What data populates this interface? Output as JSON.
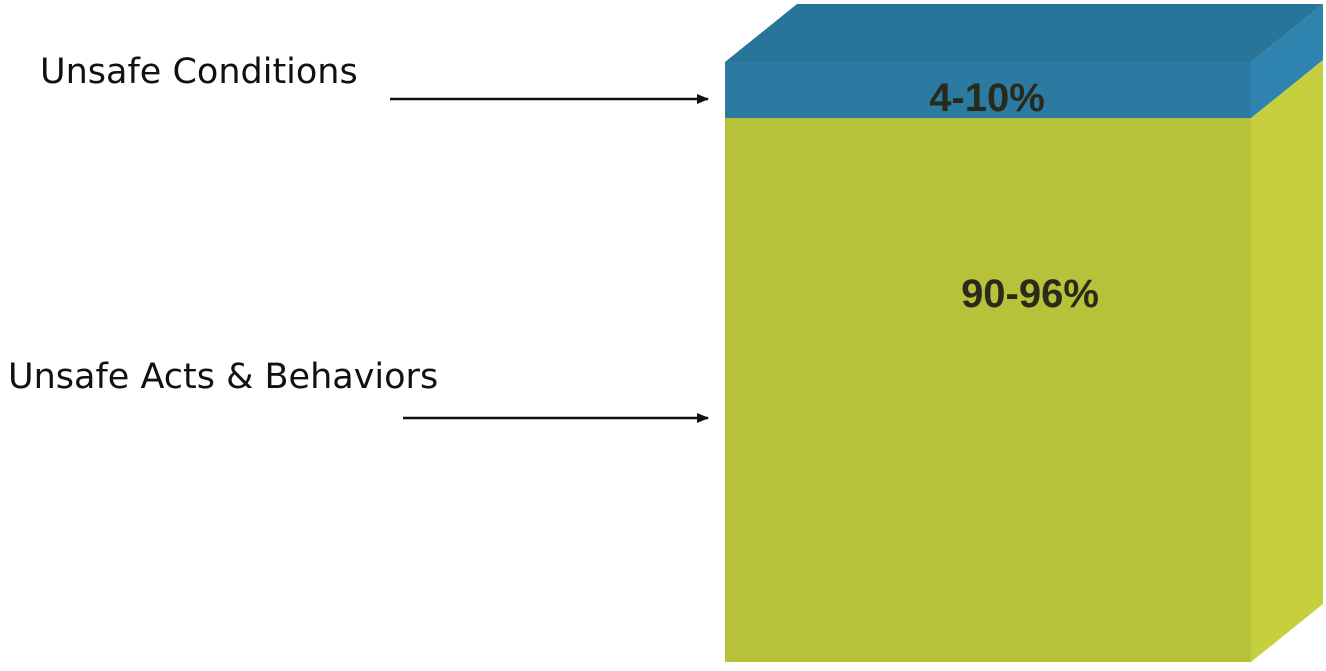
{
  "chart_data": {
    "type": "bar",
    "orientation": "vertical",
    "style": "3d-stacked-box",
    "categories": [
      ""
    ],
    "series": [
      {
        "name": "Unsafe Acts & Behaviors",
        "value_label": "90-96%",
        "range": [
          90,
          96
        ],
        "color": "#b7c13a"
      },
      {
        "name": "Unsafe Conditions",
        "value_label": "4-10%",
        "range": [
          4,
          10
        ],
        "color": "#2b7aa1"
      }
    ],
    "legend": "callout-arrows-left",
    "grid": false
  }
}
